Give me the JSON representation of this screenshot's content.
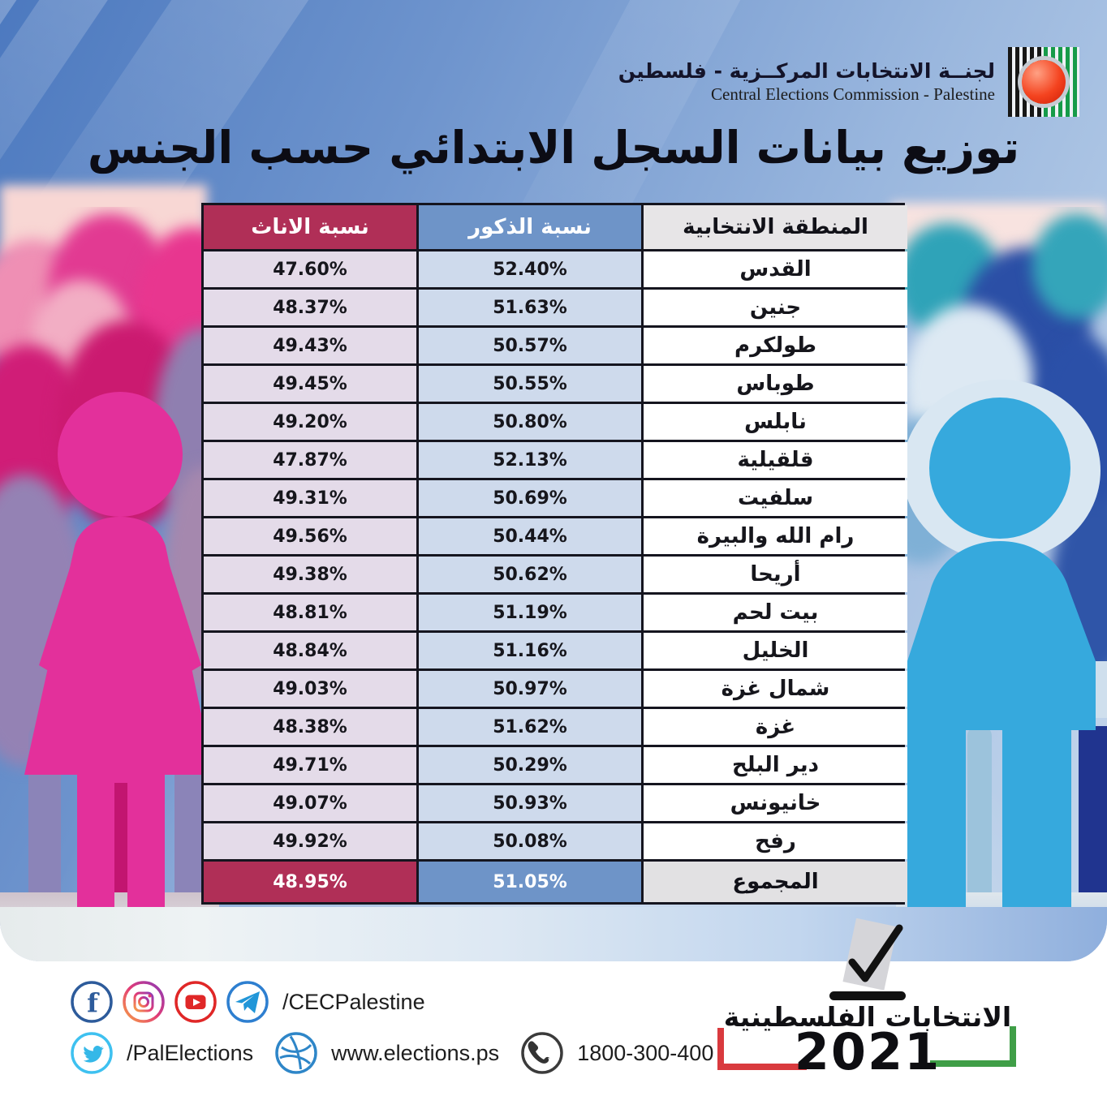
{
  "logo": {
    "arabic": "لجنــة الانتخابات المركــزية - فلسطين",
    "english": "Central Elections Commission - Palestine"
  },
  "chart_data": {
    "type": "table",
    "title": "توزيع بيانات السجل الابتدائي حسب الجنس",
    "columns": [
      "المنطقة الانتخابية",
      "نسبة الذكور",
      "نسبة الاناث"
    ],
    "rows": [
      [
        "القدس",
        "52.40%",
        "47.60%"
      ],
      [
        "جنين",
        "51.63%",
        "48.37%"
      ],
      [
        "طولكرم",
        "50.57%",
        "49.43%"
      ],
      [
        "طوباس",
        "50.55%",
        "49.45%"
      ],
      [
        "نابلس",
        "50.80%",
        "49.20%"
      ],
      [
        "قلقيلية",
        "52.13%",
        "47.87%"
      ],
      [
        "سلفيت",
        "50.69%",
        "49.31%"
      ],
      [
        "رام الله والبيرة",
        "50.44%",
        "49.56%"
      ],
      [
        "أريحا",
        "50.62%",
        "49.38%"
      ],
      [
        "بيت لحم",
        "51.19%",
        "48.81%"
      ],
      [
        "الخليل",
        "51.16%",
        "48.84%"
      ],
      [
        "شمال غزة",
        "50.97%",
        "49.03%"
      ],
      [
        "غزة",
        "51.62%",
        "48.38%"
      ],
      [
        "دير البلح",
        "50.29%",
        "49.71%"
      ],
      [
        "خانيونس",
        "50.93%",
        "49.07%"
      ],
      [
        "رفح",
        "50.08%",
        "49.92%"
      ]
    ],
    "total_row": [
      "المجموع",
      "51.05%",
      "48.95%"
    ]
  },
  "footer": {
    "social_primary_handle": "/CECPalestine",
    "twitter_handle": "/PalElections",
    "website": "www.elections.ps",
    "phone": "1800-300-400",
    "elections_arabic": "الانتخابات الفلسطينية",
    "elections_year": "2021"
  },
  "colors": {
    "female_accent": "#b02f57",
    "male_accent": "#6e94c8",
    "female_cell": "#e4dbe9",
    "male_cell": "#cedaec",
    "red_bracket": "#d93a3e",
    "green_bracket": "#3f9e47"
  }
}
